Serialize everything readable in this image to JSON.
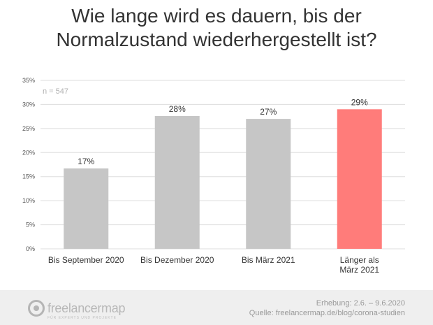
{
  "title_lines": [
    "Wie lange wird es dauern, bis der",
    "Normalzustand wiederhergestellt ist?"
  ],
  "annotation": "n = 547",
  "chart_data": {
    "type": "bar",
    "categories": [
      [
        "Bis September 2020"
      ],
      [
        "Bis Dezember 2020"
      ],
      [
        "Bis März 2021"
      ],
      [
        "Länger als",
        "März 2021"
      ]
    ],
    "values": [
      16.7,
      27.6,
      27.0,
      29.0
    ],
    "data_labels": [
      "17%",
      "28%",
      "27%",
      "29%"
    ],
    "bar_colors": [
      "#c6c6c6",
      "#c6c6c6",
      "#c6c6c6",
      "#ff7c7a"
    ],
    "yticks": [
      "0%",
      "5%",
      "10%",
      "15%",
      "20%",
      "25%",
      "30%",
      "35%"
    ],
    "ylim": [
      0,
      35
    ],
    "grid": true,
    "title": "Wie lange wird es dauern, bis der Normalzustand wiederhergestellt ist?"
  },
  "footer": {
    "logo_text": "freelancermap",
    "logo_tagline": "FÜR EXPERTS UND PROJEKTE",
    "survey": "Erhebung: 2.6. – 9.6.2020",
    "source": "Quelle: freelancermap.de/blog/corona-studien"
  },
  "colors": {
    "bar_default": "#c6c6c6",
    "bar_highlight": "#ff7c7a",
    "grid": "#dddddd"
  }
}
